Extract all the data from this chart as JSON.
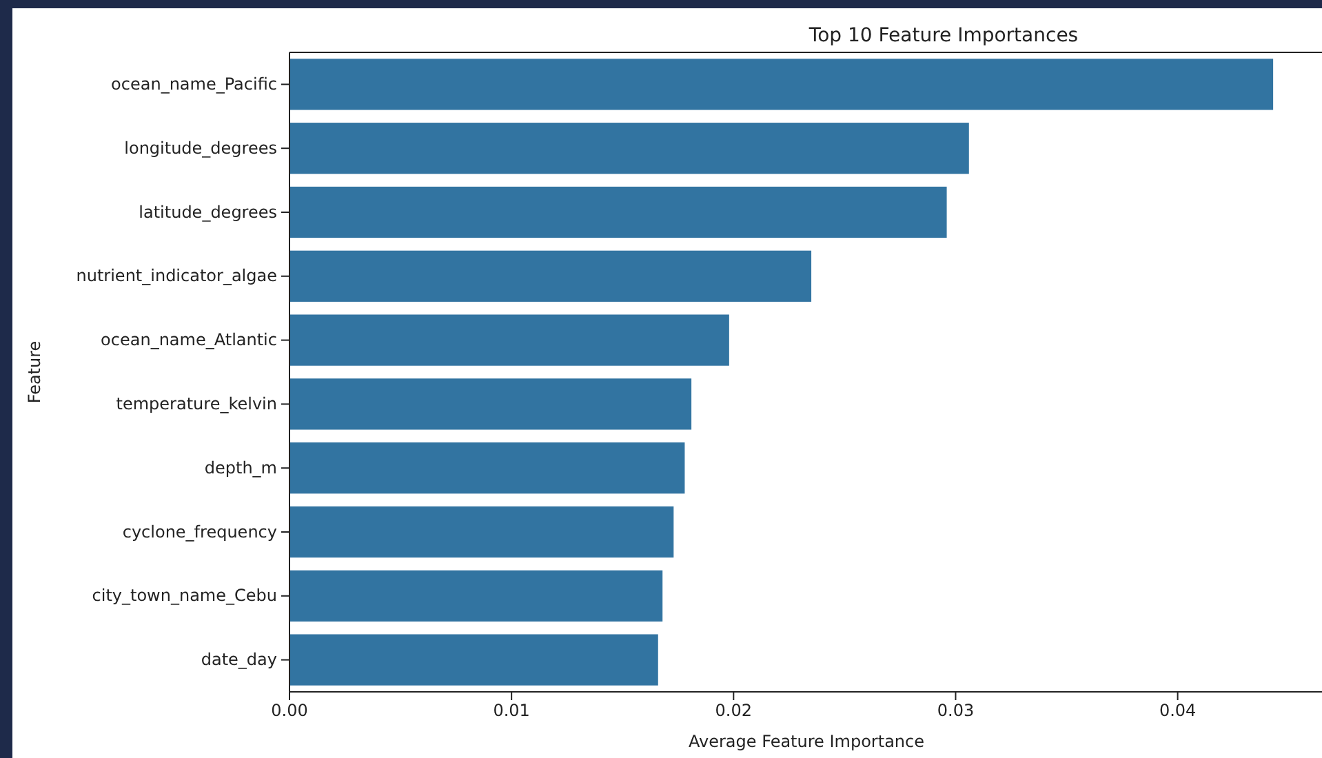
{
  "chart_data": {
    "type": "bar",
    "orientation": "horizontal",
    "title": "Top 10 Feature Importances",
    "xlabel": "Average Feature Importance",
    "ylabel": "Feature",
    "categories": [
      "ocean_name_Pacific",
      "longitude_degrees",
      "latitude_degrees",
      "nutrient_indicator_algae",
      "ocean_name_Atlantic",
      "temperature_kelvin",
      "depth_m",
      "cyclone_frequency",
      "city_town_name_Cebu",
      "date_day"
    ],
    "values": [
      0.0443,
      0.0306,
      0.0296,
      0.0235,
      0.0198,
      0.0181,
      0.0178,
      0.0173,
      0.0168,
      0.0166
    ],
    "color": "#3274a1",
    "xlim": [
      0,
      0.0465
    ],
    "xticks": [
      {
        "value": 0,
        "label": "0.00"
      },
      {
        "value": 0.01,
        "label": "0.01"
      },
      {
        "value": 0.02,
        "label": "0.02"
      },
      {
        "value": 0.03,
        "label": "0.03"
      },
      {
        "value": 0.04,
        "label": "0.04"
      }
    ],
    "grid": false
  }
}
